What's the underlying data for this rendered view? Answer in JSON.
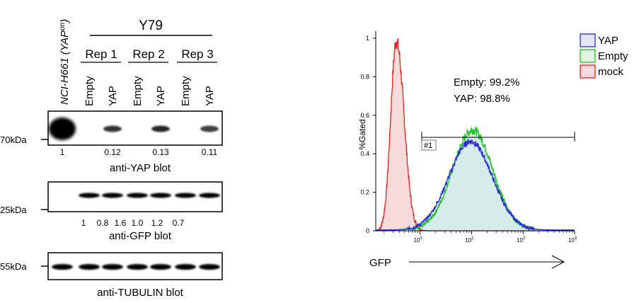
{
  "western": {
    "control_lane_label": "NCI-H661 (YAP",
    "control_lane_sup": "on",
    "control_lane_close": ")",
    "group_label": "Y79",
    "reps": [
      "Rep 1",
      "Rep 2",
      "Rep 3"
    ],
    "lane_labels": [
      "Empty",
      "YAP",
      "Empty",
      "YAP",
      "Empty",
      "YAP"
    ],
    "yap": {
      "marker": "70kDa",
      "quant": [
        "1",
        "0.12",
        "0.13",
        "0.11"
      ],
      "title": "anti-YAP blot",
      "band_intensity": [
        1,
        0,
        0.55,
        0,
        0.6,
        0,
        0.5
      ]
    },
    "gfp": {
      "marker": "25kDa",
      "quant": [
        "1",
        "0.8",
        "1.6",
        "1.0",
        "1.2",
        "0.7"
      ],
      "title": "anti-GFP blot",
      "band_intensity": [
        0,
        0.9,
        0.8,
        0.95,
        0.9,
        0.85,
        0.8
      ]
    },
    "tubulin": {
      "marker": "55kDa",
      "title": "anti-TUBULIN blot",
      "band_intensity": [
        0.9,
        0.9,
        0.9,
        0.9,
        0.9,
        0.9,
        0.9
      ]
    }
  },
  "flow": {
    "y_label": "%Gated",
    "x_label": "GFP",
    "y_ticks": [
      "0",
      "0.2",
      "0.4",
      "0.6",
      "0.8",
      "1"
    ],
    "x_ticks": [
      "10",
      "10",
      "10",
      "10"
    ],
    "x_tick_exps": [
      "0",
      "1",
      "2",
      "3"
    ],
    "gate_label": "#1",
    "annotation_line1": "Empty: 99.2%",
    "annotation_line2": "YAP: 98.8%",
    "legend": [
      {
        "label": "YAP",
        "color": "#2b2bd6",
        "fill": "#e3e6f7"
      },
      {
        "label": "Empty",
        "color": "#22c42a",
        "fill": "#e2f5e2"
      },
      {
        "label": "mock",
        "color": "#e0201f",
        "fill": "#f7dada"
      }
    ]
  }
}
